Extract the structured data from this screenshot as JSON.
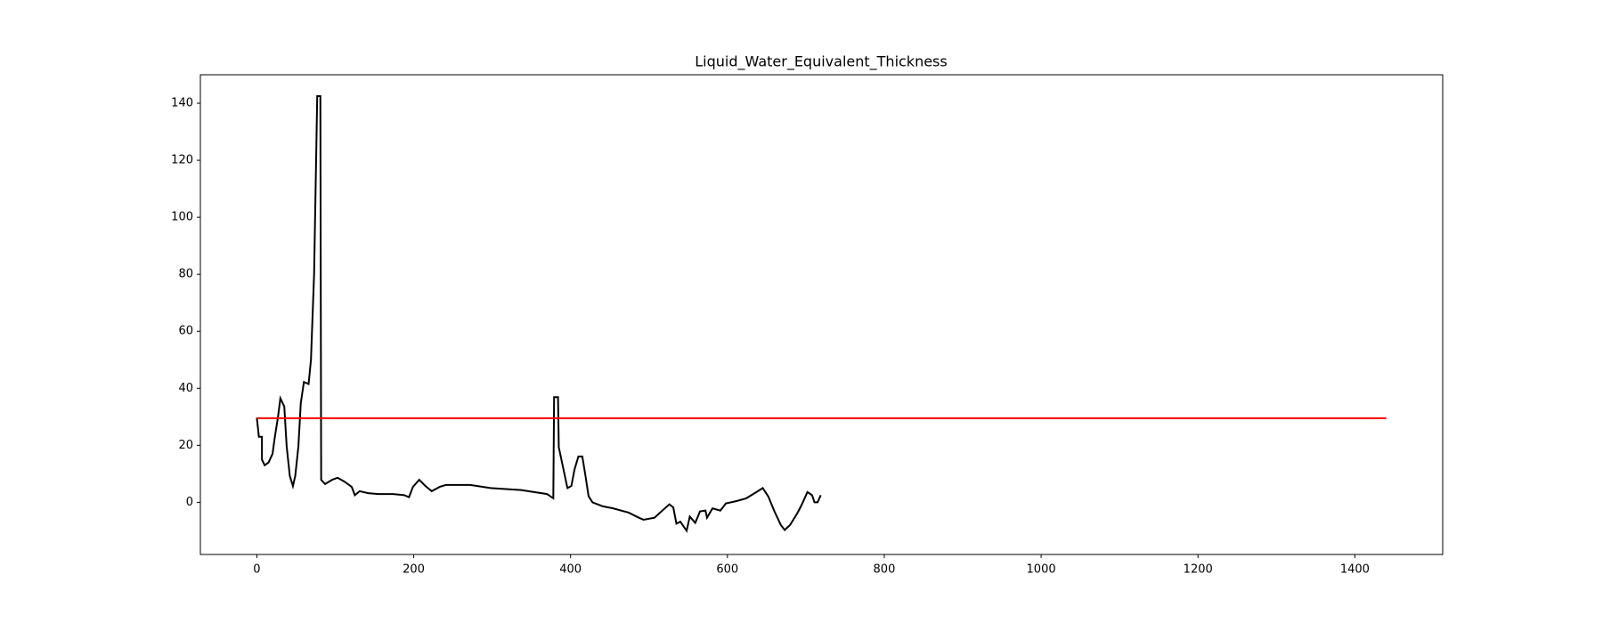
{
  "chart_data": {
    "type": "line",
    "title": "Liquid_Water_Equivalent_Thickness",
    "xlim": [
      -72,
      1512
    ],
    "ylim": [
      -18.3,
      150
    ],
    "xticks": [
      0,
      200,
      400,
      600,
      800,
      1000,
      1200,
      1400
    ],
    "yticks": [
      0,
      20,
      40,
      60,
      80,
      100,
      120,
      140
    ],
    "series": [
      {
        "color": "#000000",
        "x": [
          0,
          2.6,
          6.5,
          6.5,
          10,
          15,
          20,
          23,
          27,
          30,
          35,
          38,
          42,
          46,
          49,
          53,
          56,
          60,
          66,
          69,
          73,
          77,
          81,
          82,
          87,
          96,
          103,
          112,
          121,
          125,
          131,
          142,
          155,
          174,
          188,
          194,
          199,
          207,
          215,
          223,
          233,
          241,
          272,
          298,
          337,
          370,
          378,
          379,
          384,
          385,
          391,
          396,
          401,
          405,
          410,
          415,
          419,
          423,
          428,
          441,
          454,
          474,
          487,
          493,
          507,
          517,
          526,
          531,
          535,
          540,
          548,
          552,
          559,
          565,
          572,
          574,
          581,
          591,
          598,
          611,
          624,
          637,
          645,
          652,
          660,
          668,
          673,
          680,
          689,
          695,
          702,
          708,
          711,
          715,
          719
        ],
        "values": [
          29.7,
          23,
          23,
          15,
          13,
          14,
          17,
          23,
          30,
          36.5,
          33.6,
          19.7,
          9.3,
          5.7,
          9.3,
          19.7,
          34.7,
          42.2,
          41.5,
          50,
          80,
          142.5,
          142.5,
          7.9,
          6.4,
          7.9,
          8.6,
          7.2,
          5.4,
          2.5,
          3.9,
          3.2,
          2.9,
          2.9,
          2.5,
          1.8,
          5.4,
          7.9,
          5.7,
          3.9,
          5.4,
          6.1,
          6.1,
          5,
          4.3,
          2.9,
          1.4,
          36.9,
          36.9,
          19.3,
          11.5,
          5,
          5.7,
          11.5,
          16.1,
          16.1,
          9.3,
          2.1,
          0,
          -1.4,
          -2.1,
          -3.6,
          -5.4,
          -6.1,
          -5.4,
          -2.9,
          -0.7,
          -1.8,
          -7.5,
          -6.8,
          -10,
          -5,
          -7.2,
          -3.2,
          -2.9,
          -5.4,
          -2.1,
          -2.9,
          -0.4,
          0.4,
          1.4,
          3.6,
          5,
          2.1,
          -3.2,
          -7.9,
          -9.7,
          -7.9,
          -3.9,
          -0.7,
          3.6,
          2.5,
          0,
          0,
          2.5
        ]
      },
      {
        "color": "#ff0000",
        "x": [
          0,
          1440
        ],
        "values": [
          29.5,
          29.5
        ]
      }
    ]
  }
}
